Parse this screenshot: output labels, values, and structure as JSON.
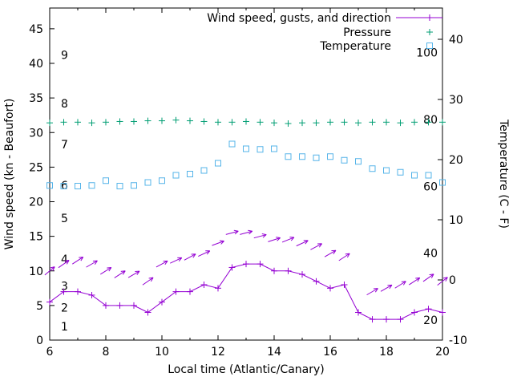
{
  "chart_data": {
    "type": "line",
    "xlabel": "Local time (Atlantic/Canary)",
    "ylabel_left": "Wind speed (kn - Beaufort)",
    "ylabel_right": "Temperature (C - F)",
    "legend": {
      "wind": "Wind speed, gusts, and direction",
      "pressure": "Pressure",
      "temperature": "Temperature"
    },
    "x_range": [
      6,
      20
    ],
    "y_left_range": [
      0,
      48
    ],
    "y_right_range": [
      -10,
      45.2
    ],
    "x_ticks": [
      6,
      8,
      10,
      12,
      14,
      16,
      18,
      20
    ],
    "x_minor_ticks": [
      7,
      9,
      11,
      13,
      15,
      17,
      19
    ],
    "y_left_ticks": [
      0,
      5,
      10,
      15,
      20,
      25,
      30,
      35,
      40,
      45
    ],
    "y_right_ticks": [
      -10,
      0,
      10,
      20,
      30,
      40
    ],
    "beaufort_labels": [
      {
        "label": "1",
        "kn": 2
      },
      {
        "label": "2",
        "kn": 4.7
      },
      {
        "label": "3",
        "kn": 7.8
      },
      {
        "label": "4",
        "kn": 11.7
      },
      {
        "label": "5",
        "kn": 17.6
      },
      {
        "label": "6",
        "kn": 22.4
      },
      {
        "label": "7",
        "kn": 28.3
      },
      {
        "label": "8",
        "kn": 34.2
      },
      {
        "label": "9",
        "kn": 41.2
      }
    ],
    "fahrenheit_labels": [
      20,
      40,
      60,
      80,
      100
    ],
    "colors": {
      "wind": "#9400d3",
      "pressure": "#009e73",
      "temperature": "#56b4e9",
      "axis": "#000000"
    },
    "x": [
      6,
      6.5,
      7,
      7.5,
      8,
      8.5,
      9,
      9.5,
      10,
      10.5,
      11,
      11.5,
      12,
      12.5,
      13,
      13.5,
      14,
      14.5,
      15,
      15.5,
      16,
      16.5,
      17,
      17.5,
      18,
      18.5,
      19,
      19.5,
      20
    ],
    "wind_speed_kn": [
      5.5,
      7,
      7,
      6.5,
      5,
      5,
      5,
      4,
      5.5,
      7,
      7,
      8,
      7.5,
      10.5,
      11,
      11,
      10,
      10,
      9.5,
      8.5,
      7.5,
      8,
      4,
      3,
      3,
      3,
      4,
      4.5,
      4
    ],
    "pressure_y_leftscale": [
      31.4,
      31.5,
      31.5,
      31.4,
      31.5,
      31.6,
      31.6,
      31.7,
      31.7,
      31.8,
      31.7,
      31.6,
      31.5,
      31.5,
      31.6,
      31.5,
      31.4,
      31.3,
      31.4,
      31.4,
      31.5,
      31.5,
      31.4,
      31.5,
      31.5,
      31.4,
      31.5,
      31.5,
      31.5
    ],
    "temperature_c": [
      15.7,
      15.6,
      15.6,
      15.7,
      16.5,
      15.6,
      15.7,
      16.2,
      16.5,
      17.4,
      17.6,
      18.2,
      19.4,
      22.6,
      21.8,
      21.7,
      21.8,
      20.5,
      20.5,
      20.3,
      20.5,
      19.9,
      19.7,
      18.5,
      18.2,
      17.9,
      17.4,
      17.4,
      16.2
    ],
    "gusts": [
      {
        "t": 6,
        "kn": 10,
        "angle_deg": 40
      },
      {
        "t": 6.5,
        "kn": 11,
        "angle_deg": 35
      },
      {
        "t": 7,
        "kn": 11.5,
        "angle_deg": 33
      },
      {
        "t": 7.5,
        "kn": 11,
        "angle_deg": 30
      },
      {
        "t": 8,
        "kn": 10,
        "angle_deg": 32
      },
      {
        "t": 8.5,
        "kn": 9.5,
        "angle_deg": 33
      },
      {
        "t": 9,
        "kn": 9.5,
        "angle_deg": 30
      },
      {
        "t": 9.5,
        "kn": 8.5,
        "angle_deg": 35
      },
      {
        "t": 10,
        "kn": 11,
        "angle_deg": 28
      },
      {
        "t": 10.5,
        "kn": 11.5,
        "angle_deg": 25
      },
      {
        "t": 11,
        "kn": 12,
        "angle_deg": 28
      },
      {
        "t": 11.5,
        "kn": 12.5,
        "angle_deg": 25
      },
      {
        "t": 12,
        "kn": 14,
        "angle_deg": 20
      },
      {
        "t": 12.5,
        "kn": 15.5,
        "angle_deg": 15
      },
      {
        "t": 13,
        "kn": 15.5,
        "angle_deg": 15
      },
      {
        "t": 13.5,
        "kn": 15,
        "angle_deg": 15
      },
      {
        "t": 14,
        "kn": 14.5,
        "angle_deg": 18
      },
      {
        "t": 14.5,
        "kn": 14.5,
        "angle_deg": 22
      },
      {
        "t": 15,
        "kn": 14,
        "angle_deg": 25
      },
      {
        "t": 15.5,
        "kn": 13.5,
        "angle_deg": 28
      },
      {
        "t": 16,
        "kn": 12.5,
        "angle_deg": 30
      },
      {
        "t": 16.5,
        "kn": 12,
        "angle_deg": 33
      },
      {
        "t": 17.5,
        "kn": 7,
        "angle_deg": 30
      },
      {
        "t": 18,
        "kn": 7.5,
        "angle_deg": 30
      },
      {
        "t": 18.5,
        "kn": 8,
        "angle_deg": 32
      },
      {
        "t": 19,
        "kn": 8.5,
        "angle_deg": 33
      },
      {
        "t": 19.5,
        "kn": 9,
        "angle_deg": 35
      },
      {
        "t": 20,
        "kn": 8.5,
        "angle_deg": 38
      }
    ]
  }
}
